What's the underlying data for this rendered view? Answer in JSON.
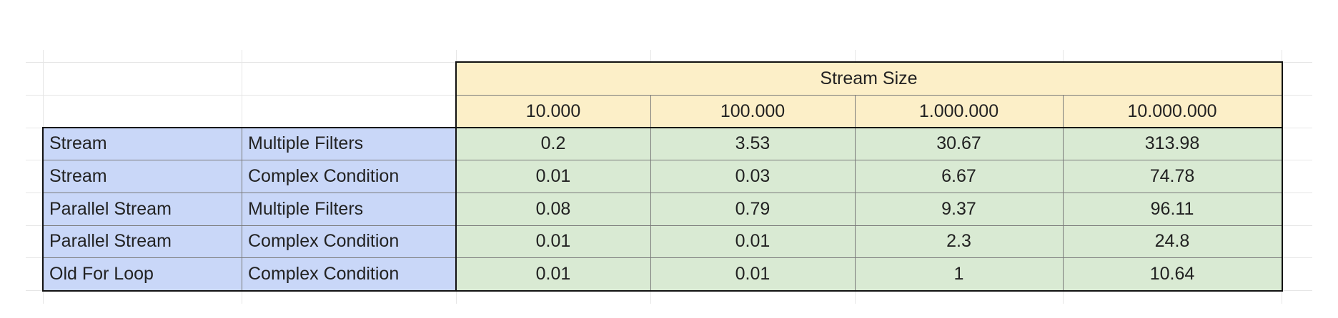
{
  "table": {
    "group_header": "Stream Size",
    "column_headers": [
      "10.000",
      "100.000",
      "1.000.000",
      "10.000.000"
    ],
    "rows": [
      {
        "label_a": "Stream",
        "label_b": "Multiple Filters",
        "values": [
          "0.2",
          "3.53",
          "30.67",
          "313.98"
        ]
      },
      {
        "label_a": "Stream",
        "label_b": "Complex Condition",
        "values": [
          "0.01",
          "0.03",
          "6.67",
          "74.78"
        ]
      },
      {
        "label_a": "Parallel Stream",
        "label_b": "Multiple Filters",
        "values": [
          "0.08",
          "0.79",
          "9.37",
          "96.11"
        ]
      },
      {
        "label_a": "Parallel Stream",
        "label_b": "Complex Condition",
        "values": [
          "0.01",
          "0.01",
          "2.3",
          "24.8"
        ]
      },
      {
        "label_a": "Old For Loop",
        "label_b": "Complex Condition",
        "values": [
          "0.01",
          "0.01",
          "1",
          "10.64"
        ]
      }
    ]
  },
  "colors": {
    "header_fill": "#fcefc8",
    "label_fill": "#c9d7f8",
    "value_fill": "#d9ead3",
    "border": "#111111"
  }
}
